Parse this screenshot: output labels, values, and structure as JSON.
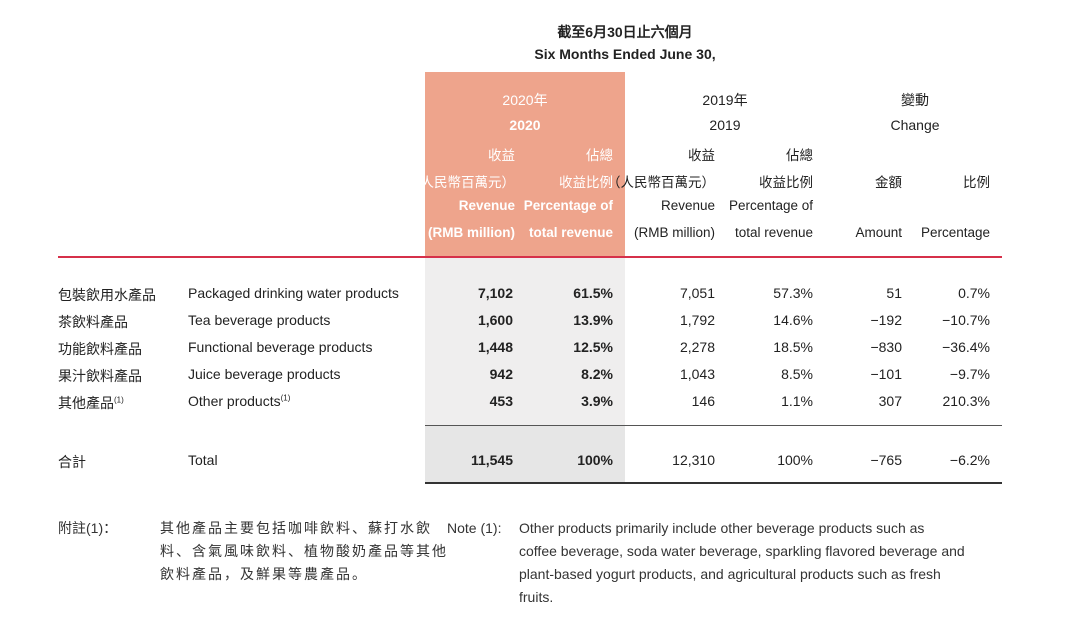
{
  "period": {
    "zh": "截至6月30日止六個月",
    "en": "Six Months Ended June 30,"
  },
  "year2020": {
    "zh": "2020年",
    "en": "2020"
  },
  "year2019": {
    "zh": "2019年",
    "en": "2019"
  },
  "change": {
    "zh": "變動",
    "en": "Change"
  },
  "cols": {
    "rev_zh1": "收益",
    "rev_zh2": "（人民幣百萬元）",
    "rev_en1": "Revenue",
    "rev_en2": "(RMB million)",
    "pct_zh1": "佔總",
    "pct_zh2": "收益比例",
    "pct_en1": "Percentage of",
    "pct_en2": "total revenue",
    "amt_zh": "金額",
    "amt_en": "Amount",
    "ratio_zh": "比例",
    "ratio_en": "Percentage"
  },
  "rows": [
    {
      "zh": "包裝飲用水產品",
      "en": "Packaged drinking water products",
      "rev20": "7,102",
      "pct20": "61.5%",
      "rev19": "7,051",
      "pct19": "57.3%",
      "amt": "51",
      "pct": "0.7%"
    },
    {
      "zh": "茶飲料產品",
      "en": "Tea beverage products",
      "rev20": "1,600",
      "pct20": "13.9%",
      "rev19": "1,792",
      "pct19": "14.6%",
      "amt": "−192",
      "pct": "−10.7%"
    },
    {
      "zh": "功能飲料產品",
      "en": "Functional beverage products",
      "rev20": "1,448",
      "pct20": "12.5%",
      "rev19": "2,278",
      "pct19": "18.5%",
      "amt": "−830",
      "pct": "−36.4%"
    },
    {
      "zh": "果汁飲料產品",
      "en": "Juice beverage products",
      "rev20": "942",
      "pct20": "8.2%",
      "rev19": "1,043",
      "pct19": "8.5%",
      "amt": "−101",
      "pct": "−9.7%"
    },
    {
      "zh": "其他產品",
      "zh_sup": "(1)",
      "en": "Other products",
      "en_sup": "(1)",
      "rev20": "453",
      "pct20": "3.9%",
      "rev19": "146",
      "pct19": "1.1%",
      "amt": "307",
      "pct": "210.3%"
    }
  ],
  "total": {
    "zh": "合計",
    "en": "Total",
    "rev20": "11,545",
    "pct20": "100%",
    "rev19": "12,310",
    "pct19": "100%",
    "amt": "−765",
    "pct": "−6.2%"
  },
  "note_zh": {
    "label": "附註(1)：",
    "l1": "其他產品主要包括咖啡飲料、蘇打水飲",
    "l2": "料、含氣風味飲料、植物酸奶產品等其他",
    "l3": "飲料產品，及鮮果等農產品。"
  },
  "note_en": {
    "label": "Note (1):",
    "l1": "Other products primarily include other beverage products such as",
    "l2": "coffee beverage, soda water beverage, sparkling flavored beverage and",
    "l3": "plant-based yogurt products, and agricultural products such as fresh",
    "l4": "fruits."
  }
}
